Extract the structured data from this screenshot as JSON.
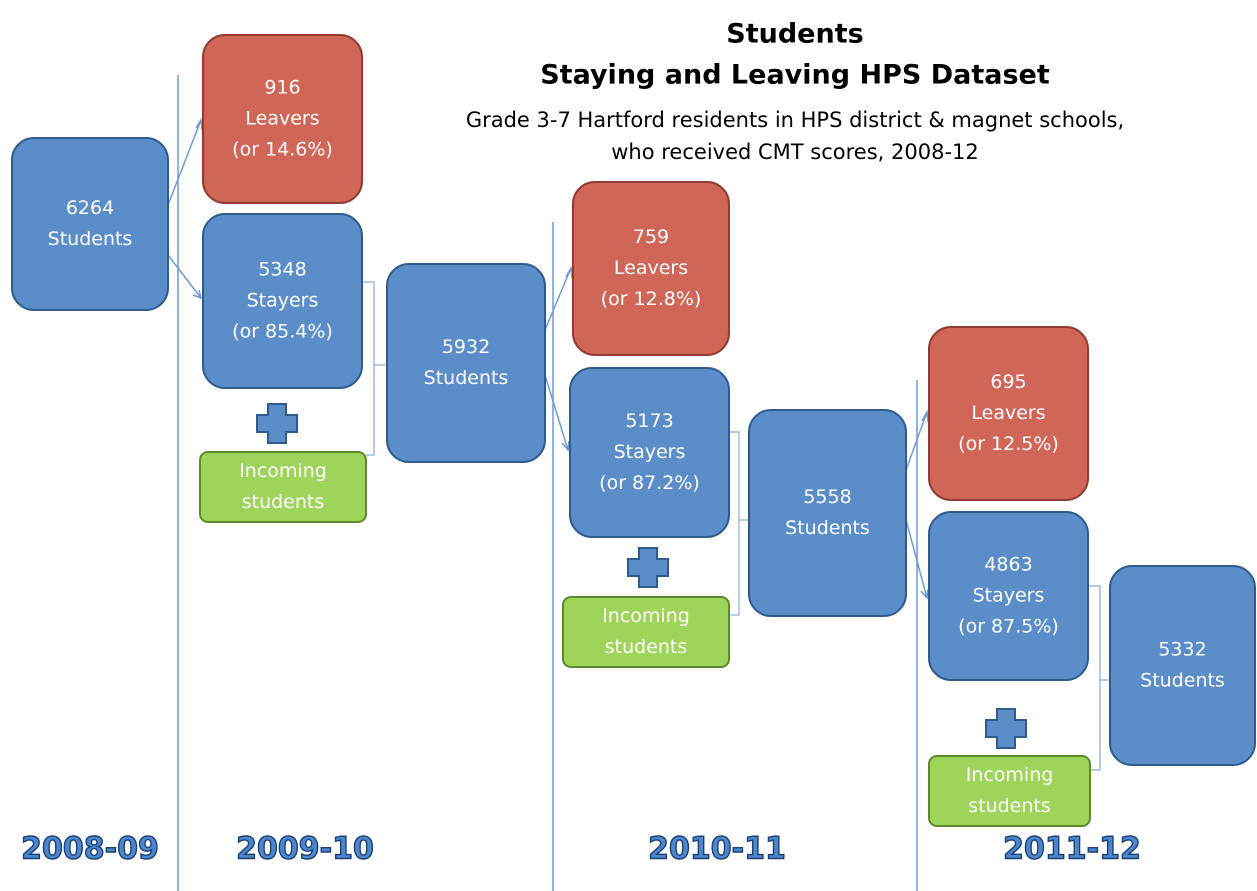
{
  "title": [
    "Students",
    "Staying and Leaving HPS Dataset"
  ],
  "subtitle": [
    "Grade 3-7 Hartford residents in HPS district & magnet schools,",
    "who received CMT scores, 2008-12"
  ],
  "nodes": [
    {
      "lines": [
        "6264",
        "Students"
      ],
      "color": "#5b8ec8"
    },
    {
      "lines": [
        "916",
        "Leavers",
        "(or 14.6%)"
      ],
      "color": "#cf6657"
    },
    {
      "lines": [
        "5348",
        "Stayers",
        "(or 85.4%)"
      ],
      "color": "#5b8ec8"
    },
    {
      "lines": [
        "Incoming",
        "students"
      ],
      "color": "#9fd45a"
    },
    {
      "lines": [
        "5932",
        "Students"
      ],
      "color": "#5b8ec8"
    },
    {
      "lines": [
        "759",
        "Leavers",
        "(or 12.8%)"
      ],
      "color": "#cf6657"
    },
    {
      "lines": [
        "5173",
        "Stayers",
        "(or 87.2%)"
      ],
      "color": "#5b8ec8"
    },
    {
      "lines": [
        "Incoming",
        "students"
      ],
      "color": "#9fd45a"
    },
    {
      "lines": [
        "5558",
        "Students"
      ],
      "color": "#5b8ec8"
    },
    {
      "lines": [
        "695",
        "Leavers",
        "(or 12.5%)"
      ],
      "color": "#cf6657"
    },
    {
      "lines": [
        "4863",
        "Stayers",
        "(or 87.5%)"
      ],
      "color": "#5b8ec8"
    },
    {
      "lines": [
        "Incoming",
        "students"
      ],
      "color": "#9fd45a"
    },
    {
      "lines": [
        "5332",
        "Students"
      ],
      "color": "#5b8ec8"
    }
  ],
  "years": [
    "2008-09",
    "2009-10",
    "2010-11",
    "2011-12"
  ]
}
